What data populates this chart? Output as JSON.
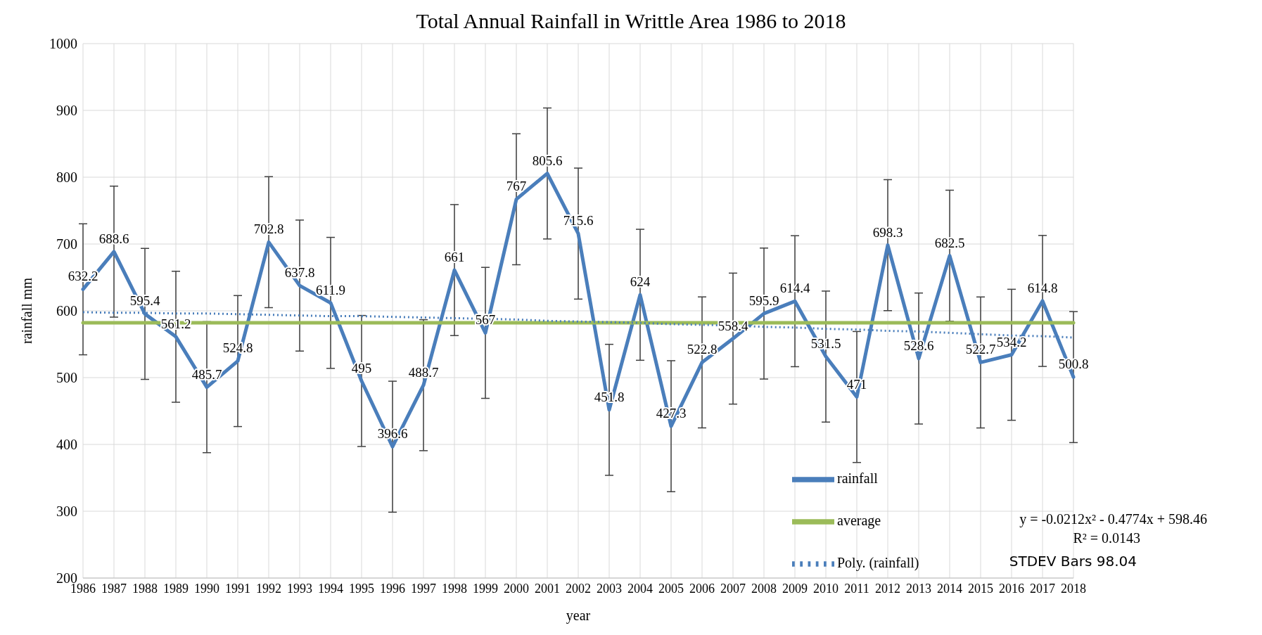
{
  "chart_data": {
    "type": "line",
    "title": "Total Annual Rainfall in Writtle Area 1986 to 2018",
    "xlabel": "year",
    "ylabel": "rainfall mm",
    "categories": [
      "1986",
      "1987",
      "1988",
      "1989",
      "1990",
      "1991",
      "1992",
      "1993",
      "1994",
      "1995",
      "1996",
      "1997",
      "1998",
      "1999",
      "2000",
      "2001",
      "2002",
      "2003",
      "2004",
      "2005",
      "2006",
      "2007",
      "2008",
      "2009",
      "2010",
      "2011",
      "2012",
      "2013",
      "2014",
      "2015",
      "2016",
      "2017",
      "2018"
    ],
    "series": [
      {
        "name": "rainfall",
        "color": "#4a7ebb",
        "values": [
          632.2,
          688.6,
          595.4,
          561.2,
          485.7,
          524.8,
          702.8,
          637.8,
          611.9,
          495,
          396.6,
          488.7,
          661,
          567,
          767,
          805.6,
          715.6,
          451.8,
          624,
          427.3,
          522.8,
          558.4,
          595.9,
          614.4,
          531.5,
          471,
          698.3,
          528.6,
          682.5,
          522.7,
          534.2,
          614.8,
          500.8
        ],
        "errors": [
          98.04,
          98.04,
          98.04,
          98.04,
          98.04,
          98.04,
          98.04,
          98.04,
          98.04,
          98.04,
          98.04,
          98.04,
          98.04,
          98.04,
          98.04,
          98.04,
          98.04,
          98.04,
          98.04,
          98.04,
          98.04,
          98.04,
          98.04,
          98.04,
          98.04,
          98.04,
          98.04,
          98.04,
          98.04,
          98.04,
          98.04,
          98.04,
          98.04
        ],
        "value_labels": [
          "632.2",
          "688.6",
          "595.4",
          "561.2",
          "485.7",
          "524.8",
          "702.8",
          "637.8",
          "611.9",
          "495",
          "396.6",
          "488.7",
          "661",
          "567",
          "767",
          "805.6",
          "715.6",
          "451.8",
          "624",
          "427.3",
          "522.8",
          "558.4",
          "595.9",
          "614.4",
          "531.5",
          "471",
          "698.3",
          "528.6",
          "682.5",
          "522.7",
          "534.2",
          "614.8",
          "500.8"
        ],
        "line_style": "solid"
      },
      {
        "name": "average",
        "color": "#9bbb59",
        "values": [
          582,
          582,
          582,
          582,
          582,
          582,
          582,
          582,
          582,
          582,
          582,
          582,
          582,
          582,
          582,
          582,
          582,
          582,
          582,
          582,
          582,
          582,
          582,
          582,
          582,
          582,
          582,
          582,
          582,
          582,
          582,
          582,
          582
        ],
        "line_style": "solid"
      },
      {
        "name": "Poly. (rainfall)",
        "color": "#4a7ebb",
        "values": [
          598,
          597,
          597,
          596,
          596,
          595,
          594,
          593,
          592,
          592,
          591,
          590,
          589,
          588,
          587,
          585,
          584,
          583,
          582,
          580,
          579,
          578,
          576,
          575,
          573,
          572,
          570,
          569,
          567,
          565,
          563,
          562,
          560
        ],
        "line_style": "dotted"
      }
    ],
    "ylim": [
      200,
      1000
    ],
    "yticks": [
      200,
      300,
      400,
      500,
      600,
      700,
      800,
      900,
      1000
    ],
    "grid": true,
    "legend": "bottom right",
    "marker": "none",
    "annotations": [
      "y = -0.0212x² - 0.4774x + 598.46",
      "R² = 0.0143",
      "STDEV Bars 98.04"
    ]
  }
}
